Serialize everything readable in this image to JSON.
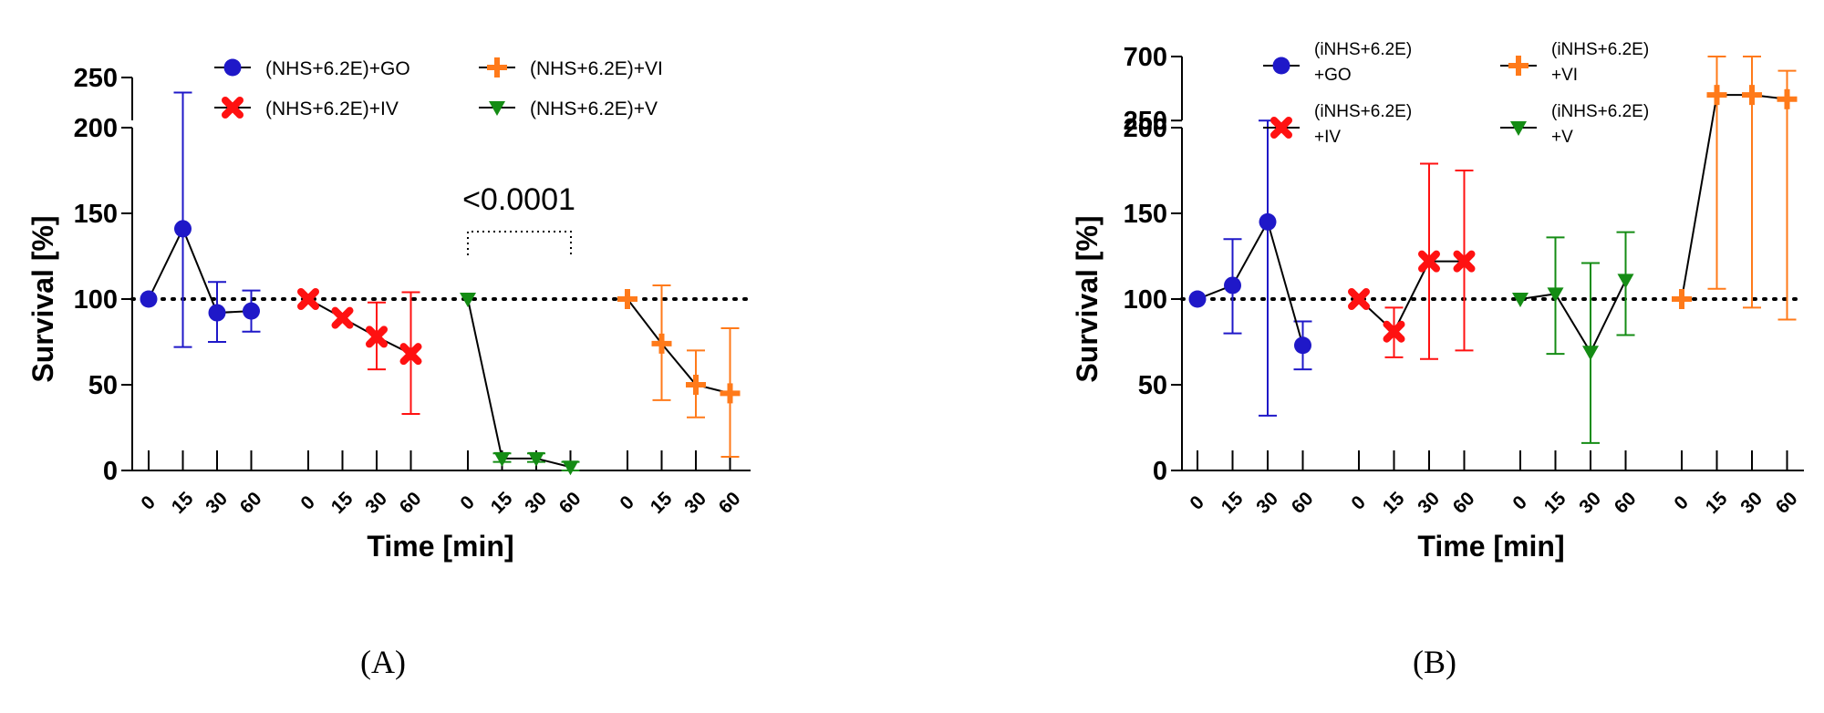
{
  "colors": {
    "blue": "#1f18c8",
    "red": "#ff1111",
    "orange": "#ff7a1a",
    "green": "#148c14",
    "axis": "#000000",
    "line": "#000000"
  },
  "chart_data": [
    {
      "type": "line",
      "panel_label": "(A)",
      "ylabel": "Survival [%]",
      "xlabel": "Time [min]",
      "ylim": [
        0,
        250
      ],
      "y_break": [
        200,
        250
      ],
      "yticks": [
        0,
        50,
        100,
        150,
        200,
        250
      ],
      "categories": [
        "0",
        "15",
        "30",
        "60"
      ],
      "reference_line": 100,
      "annotation": "<0.0001",
      "series": [
        {
          "name": "(NHS+6.2E)+GO",
          "color": "blue",
          "marker": "circle",
          "values": [
            100,
            141,
            92,
            93
          ],
          "err_high": [
            100,
            235,
            110,
            105
          ],
          "err_low": [
            100,
            72,
            75,
            81
          ]
        },
        {
          "name": "(NHS+6.2E)+IV",
          "color": "red",
          "marker": "x",
          "values": [
            100,
            89,
            78,
            68
          ],
          "err_high": [
            100,
            89,
            98,
            104
          ],
          "err_low": [
            100,
            89,
            59,
            33
          ]
        },
        {
          "name": "(NHS+6.2E)+V",
          "color": "green",
          "marker": "triangle",
          "values": [
            100,
            7,
            7,
            2
          ],
          "err_high": [
            100,
            10,
            10,
            5
          ],
          "err_low": [
            100,
            5,
            5,
            0
          ]
        },
        {
          "name": "(NHS+6.2E)+VI",
          "color": "orange",
          "marker": "plus",
          "values": [
            100,
            74,
            50,
            45
          ],
          "err_high": [
            100,
            108,
            70,
            83
          ],
          "err_low": [
            100,
            41,
            31,
            8
          ]
        }
      ]
    },
    {
      "type": "line",
      "panel_label": "(B)",
      "ylabel": "Survival [%]",
      "xlabel": "Time [min]",
      "ylim": [
        0,
        700
      ],
      "y_break": [
        200,
        700
      ],
      "yticks": [
        0,
        50,
        100,
        150,
        200,
        250,
        700
      ],
      "categories": [
        "0",
        "15",
        "30",
        "60"
      ],
      "reference_line": 100,
      "series": [
        {
          "name": "(iNHS+6.2E)+GO",
          "legend_lines": [
            "(iNHS+6.2E)",
            "+GO"
          ],
          "color": "blue",
          "marker": "circle",
          "values": [
            100,
            108,
            145,
            73
          ],
          "err_high": [
            100,
            135,
            250,
            87
          ],
          "err_low": [
            100,
            80,
            32,
            59
          ]
        },
        {
          "name": "(iNHS+6.2E)+IV",
          "legend_lines": [
            "(iNHS+6.2E)",
            "+IV"
          ],
          "color": "red",
          "marker": "x",
          "values": [
            100,
            81,
            122,
            122
          ],
          "err_high": [
            100,
            95,
            179,
            175
          ],
          "err_low": [
            100,
            66,
            65,
            70
          ]
        },
        {
          "name": "(iNHS+6.2E)+V",
          "legend_lines": [
            "(iNHS+6.2E)",
            "+V"
          ],
          "color": "green",
          "marker": "triangle",
          "values": [
            100,
            103,
            69,
            111
          ],
          "err_high": [
            100,
            136,
            121,
            139
          ],
          "err_low": [
            100,
            68,
            16,
            79
          ]
        },
        {
          "name": "(iNHS+6.2E)+VI",
          "legend_lines": [
            "(iNHS+6.2E)",
            "+VI"
          ],
          "color": "orange",
          "marker": "plus",
          "values": [
            100,
            430,
            430,
            400
          ],
          "err_high": [
            100,
            700,
            700,
            600
          ],
          "err_low": [
            100,
            106,
            95,
            88
          ]
        }
      ]
    }
  ]
}
